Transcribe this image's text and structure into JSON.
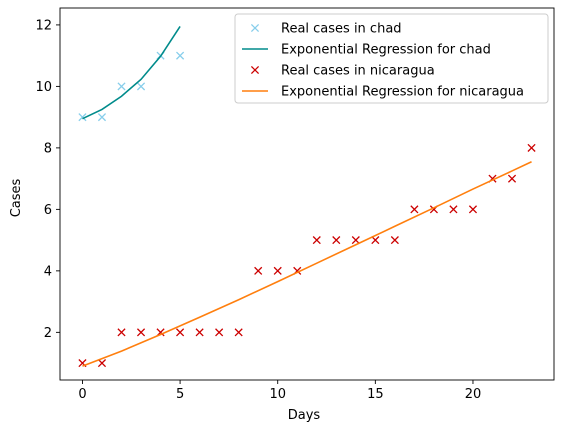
{
  "chart_data": {
    "type": "scatter",
    "xlabel": "Days",
    "ylabel": "Cases",
    "xlim": [
      -1.15,
      24.15
    ],
    "ylim": [
      0.45,
      12.55
    ],
    "xticks": [
      0,
      5,
      10,
      15,
      20
    ],
    "yticks": [
      2,
      4,
      6,
      8,
      10,
      12
    ],
    "grid": false,
    "legend_position": "top-right",
    "series": [
      {
        "name": "Real cases in chad",
        "kind": "points",
        "marker": "x",
        "color": "#87ceeb",
        "x": [
          0,
          1,
          2,
          3,
          4,
          5
        ],
        "y": [
          9,
          9,
          10,
          10,
          11,
          11
        ]
      },
      {
        "name": "Exponential Regression for chad",
        "kind": "line",
        "color": "#008b8b",
        "x": [
          0,
          1,
          2,
          3,
          4,
          5
        ],
        "y": [
          8.95,
          9.25,
          9.68,
          10.23,
          10.98,
          11.95
        ]
      },
      {
        "name": "Real cases in nicaragua",
        "kind": "points",
        "marker": "x",
        "color": "#cc0000",
        "x": [
          0,
          1,
          2,
          3,
          4,
          5,
          6,
          7,
          8,
          9,
          10,
          11,
          12,
          13,
          14,
          15,
          16,
          17,
          18,
          19,
          20,
          21,
          22,
          23
        ],
        "y": [
          1,
          1,
          2,
          2,
          2,
          2,
          2,
          2,
          2,
          4,
          4,
          4,
          5,
          5,
          5,
          5,
          5,
          6,
          6,
          6,
          6,
          7,
          7,
          8
        ]
      },
      {
        "name": "Exponential Regression for nicaragua",
        "kind": "line",
        "color": "#ff7f0e",
        "x": [
          0,
          2,
          4,
          6,
          8,
          10,
          12,
          14,
          16,
          18,
          20,
          22,
          23
        ],
        "y": [
          0.9,
          1.39,
          1.93,
          2.49,
          3.06,
          3.65,
          4.25,
          4.85,
          5.45,
          6.05,
          6.66,
          7.25,
          7.55
        ]
      }
    ]
  }
}
